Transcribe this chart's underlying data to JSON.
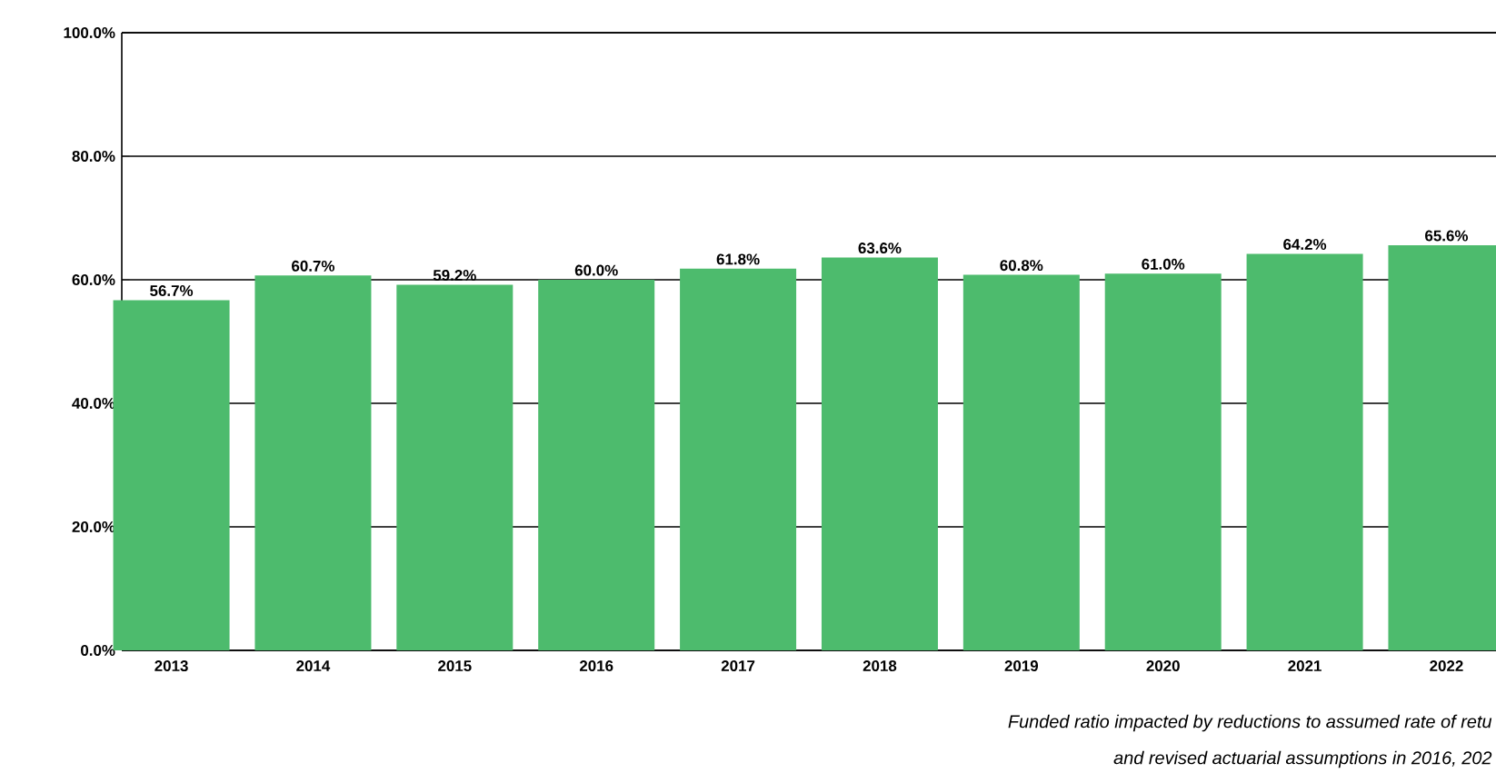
{
  "chart_data": {
    "type": "bar",
    "categories": [
      "2013",
      "2014",
      "2015",
      "2016",
      "2017",
      "2018",
      "2019",
      "2020",
      "2021",
      "2022"
    ],
    "values": [
      56.7,
      60.7,
      59.2,
      60.0,
      61.8,
      63.6,
      60.8,
      61.0,
      64.2,
      65.6
    ],
    "value_labels": [
      "56.7%",
      "60.7%",
      "59.2%",
      "60.0%",
      "61.8%",
      "63.6%",
      "60.8%",
      "61.0%",
      "64.2%",
      "65.6%"
    ],
    "color": "#4dbb6d",
    "ylim": [
      0,
      100
    ],
    "yticks": [
      {
        "value": 0,
        "label": "0.0%"
      },
      {
        "value": 20,
        "label": "20.0%"
      },
      {
        "value": 40,
        "label": "40.0%"
      },
      {
        "value": 60,
        "label": "60.0%"
      },
      {
        "value": 80,
        "label": "80.0%"
      },
      {
        "value": 100,
        "label": "100.0%"
      }
    ],
    "grid": "y",
    "annotations": [
      "Funded ratio impacted by reductions to assumed rate of retu",
      "and revised actuarial assumptions in 2016, 202"
    ]
  }
}
